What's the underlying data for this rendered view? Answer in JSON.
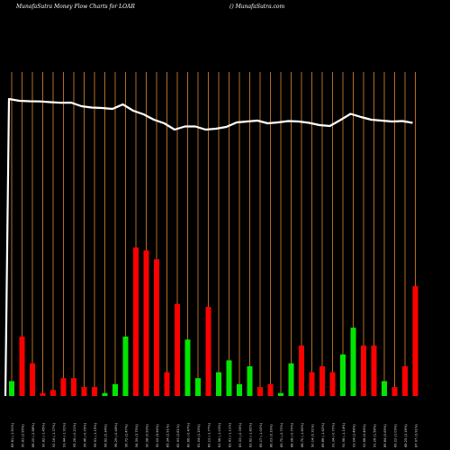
{
  "header": {
    "title": "MunafaSutra  Money Flow  Charts for LOAR",
    "site": "() MunafaSutra.com"
  },
  "chart_data": {
    "type": "bar",
    "title": "MunafaSutra  Money Flow  Charts for LOAR",
    "ylim_bars": [
      0,
      100
    ],
    "colors": {
      "up": "#00e600",
      "down": "#ff0000",
      "grid": "#c87828",
      "line": "#ffffff",
      "background": "#000000"
    },
    "bars": [
      {
        "label": "89.81 (-1.51%)",
        "value": 5,
        "color": "green"
      },
      {
        "label": "90.81 (2.95%)",
        "value": 20,
        "color": "red"
      },
      {
        "label": "88.20 (-2.88%)",
        "value": 11,
        "color": "red"
      },
      {
        "label": "90.82 (-1.45%)",
        "value": 1,
        "color": "red"
      },
      {
        "label": "92.16 (-1.37%)",
        "value": 2,
        "color": "red"
      },
      {
        "label": "93.44 (-1.91%)",
        "value": 6,
        "color": "red"
      },
      {
        "label": "95.26 (-0.21%)",
        "value": 6,
        "color": "red"
      },
      {
        "label": "95.46 (-0.05%)",
        "value": 3,
        "color": "red"
      },
      {
        "label": "95.51 (-1.15%)",
        "value": 3,
        "color": "red"
      },
      {
        "label": "96.62 (0.34%)",
        "value": 1,
        "color": "green"
      },
      {
        "label": "96.29 (-0.44%)",
        "value": 4,
        "color": "green"
      },
      {
        "label": "96.72 (2.47%)",
        "value": 20,
        "color": "green"
      },
      {
        "label": "94.39 (3.75%)",
        "value": 50,
        "color": "red"
      },
      {
        "label": "90.98 (0.99%)",
        "value": 49,
        "color": "red"
      },
      {
        "label": "90.09 (5.56%)",
        "value": 46,
        "color": "red"
      },
      {
        "label": "85.34 (2.91%)",
        "value": 8,
        "color": "red"
      },
      {
        "label": "82.93 (2.81%)",
        "value": 31,
        "color": "red"
      },
      {
        "label": "80.66 (-0.47%)",
        "value": 19,
        "color": "green"
      },
      {
        "label": "81.04 (1.15%)",
        "value": 6,
        "color": "green"
      },
      {
        "label": "80.12 (-1.77%)",
        "value": 30,
        "color": "red"
      },
      {
        "label": "81.56 (-1.03%)",
        "value": 8,
        "color": "green"
      },
      {
        "label": "82.41 (-1.11%)",
        "value": 12,
        "color": "green"
      },
      {
        "label": "83.33 (-0.35%)",
        "value": 4,
        "color": "green"
      },
      {
        "label": "83.62 (-1.82%)",
        "value": 10,
        "color": "green"
      },
      {
        "label": "85.17 (-1.00%)",
        "value": 3,
        "color": "red"
      },
      {
        "label": "86.03 (0.39%)",
        "value": 4,
        "color": "red"
      },
      {
        "label": "85.70 (-2.70%)",
        "value": 1,
        "color": "green"
      },
      {
        "label": "88.08 (-0.70%)",
        "value": 11,
        "color": "green"
      },
      {
        "label": "88.70 (-1.60%)",
        "value": 17,
        "color": "red"
      },
      {
        "label": "90.14 (0.31%)",
        "value": 8,
        "color": "red"
      },
      {
        "label": "89.86 (-1.62%)",
        "value": 10,
        "color": "red"
      },
      {
        "label": "91.34 (-0.70%)",
        "value": 8,
        "color": "red"
      },
      {
        "label": "91.98 (-1.14%)",
        "value": 14,
        "color": "green"
      },
      {
        "label": "93.04 (1.48%)",
        "value": 23,
        "color": "green"
      },
      {
        "label": "91.68 (0.46%)",
        "value": 17,
        "color": "red"
      },
      {
        "label": "91.26 (1.58%)",
        "value": 17,
        "color": "red"
      },
      {
        "label": "89.84 (0.69%)",
        "value": 5,
        "color": "green"
      },
      {
        "label": "89.22 (1.09%)",
        "value": 3,
        "color": "red"
      },
      {
        "label": "88.25 (2.18%)",
        "value": 10,
        "color": "red"
      },
      {
        "label": "87.97 (3.91%)",
        "value": 37,
        "color": "red"
      }
    ],
    "line_ylim": [
      0,
      100
    ],
    "line_values": [
      100,
      98,
      97.5,
      97.3,
      96.5,
      95.8,
      96,
      92,
      90.5,
      90,
      89,
      94,
      87,
      83,
      77,
      73,
      66,
      69.5,
      69.5,
      66,
      67,
      69,
      74,
      75,
      76,
      73,
      74,
      75.5,
      75,
      73.5,
      71,
      70,
      76.5,
      83.5,
      80,
      77,
      76,
      75,
      75.5,
      73.5
    ]
  }
}
